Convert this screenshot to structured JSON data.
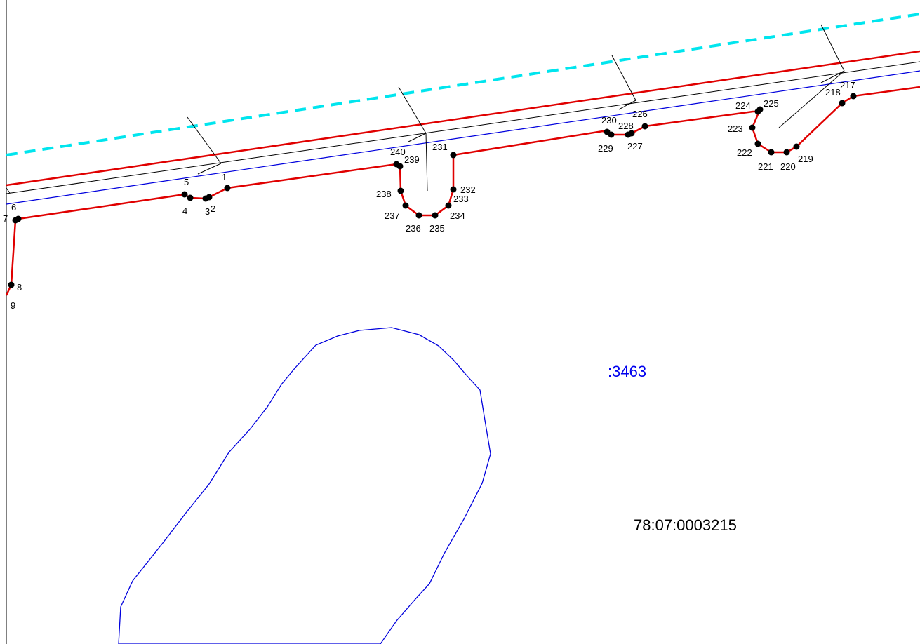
{
  "map": {
    "parcel_number": ":3463",
    "cadastral_quarter": "78:07:0003215",
    "colors": {
      "boundary": "#e00000",
      "parcel_outline": "#0000dd",
      "dashed_line": "#00e5ee",
      "linework": "#000000",
      "point": "#000000"
    },
    "point_labels": {
      "p1": "1",
      "p2": "2",
      "p3": "3",
      "p4": "4",
      "p5": "5",
      "p6": "6",
      "p7": "7",
      "p8": "8",
      "p9": "9",
      "p217": "217",
      "p218": "218",
      "p219": "219",
      "p220": "220",
      "p221": "221",
      "p222": "222",
      "p223": "223",
      "p224": "224",
      "p225": "225",
      "p226": "226",
      "p227": "227",
      "p228": "228",
      "p229": "229",
      "p230": "230",
      "p231": "231",
      "p232": "232",
      "p233": "233",
      "p234": "234",
      "p235": "235",
      "p236": "236",
      "p237": "237",
      "p238": "238",
      "p239": "239",
      "p240": "240"
    }
  }
}
